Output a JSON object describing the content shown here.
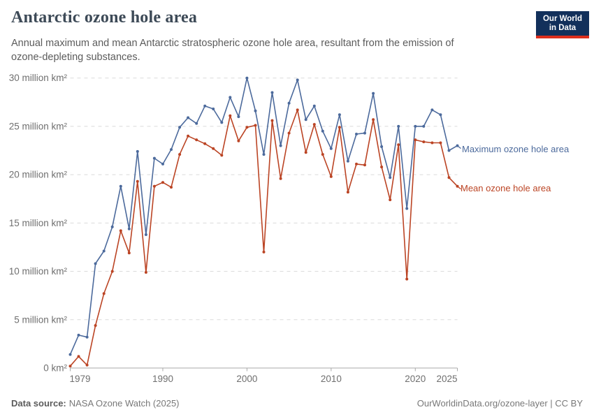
{
  "header": {
    "title": "Antarctic ozone hole area",
    "subtitle": "Annual maximum and mean Antarctic stratospheric ozone hole area, resultant from the emission of ozone-depleting substances.",
    "logo": {
      "line1": "Our World",
      "line2": "in Data",
      "bg_color": "#12305b",
      "accent_color": "#dc2e1c"
    }
  },
  "chart_data": {
    "type": "line",
    "title": "Antarctic ozone hole area",
    "unit": "million km²",
    "xlabel": "",
    "ylabel": "",
    "ylim": [
      0,
      30
    ],
    "grid": "horizontal-dashed",
    "legend_position": "end-of-line-labels-right",
    "x": [
      1979,
      1980,
      1981,
      1982,
      1983,
      1984,
      1985,
      1986,
      1987,
      1988,
      1989,
      1990,
      1991,
      1992,
      1993,
      1994,
      1995,
      1996,
      1997,
      1998,
      1999,
      2000,
      2001,
      2002,
      2003,
      2004,
      2005,
      2006,
      2007,
      2008,
      2009,
      2010,
      2011,
      2012,
      2013,
      2014,
      2015,
      2016,
      2017,
      2018,
      2019,
      2020,
      2021,
      2022,
      2023,
      2024,
      2025
    ],
    "x_ticks": [
      1979,
      1990,
      2000,
      2010,
      2020,
      2025
    ],
    "y_ticks": [
      {
        "value": 0,
        "label": "0 km²"
      },
      {
        "value": 5,
        "label": "5 million km²"
      },
      {
        "value": 10,
        "label": "10 million km²"
      },
      {
        "value": 15,
        "label": "15 million km²"
      },
      {
        "value": 20,
        "label": "20 million km²"
      },
      {
        "value": 25,
        "label": "25 million km²"
      },
      {
        "value": 30,
        "label": "30 million km²"
      }
    ],
    "series": [
      {
        "name": "Maximum ozone hole area",
        "color": "#4C6A9C",
        "values": [
          1.4,
          3.4,
          3.2,
          10.8,
          12.1,
          14.6,
          18.8,
          14.4,
          22.4,
          13.8,
          21.7,
          21.1,
          22.6,
          24.9,
          25.9,
          25.3,
          27.1,
          26.8,
          25.4,
          28.0,
          26.0,
          30.0,
          26.6,
          22.1,
          28.5,
          23.0,
          27.4,
          29.8,
          25.7,
          27.1,
          24.5,
          22.7,
          26.2,
          21.4,
          24.2,
          24.3,
          28.4,
          22.9,
          19.7,
          25.0,
          16.5,
          25.0,
          25.0,
          26.7,
          26.2,
          22.5,
          23.0
        ]
      },
      {
        "name": "Mean ozone hole area",
        "color": "#BB4424",
        "values": [
          0.2,
          1.2,
          0.3,
          4.4,
          7.7,
          10.0,
          14.2,
          11.9,
          19.3,
          9.9,
          18.8,
          19.2,
          18.7,
          22.1,
          24.0,
          23.6,
          23.2,
          22.7,
          22.0,
          26.1,
          23.5,
          24.9,
          25.1,
          12.0,
          25.6,
          19.6,
          24.3,
          26.7,
          22.3,
          25.2,
          22.1,
          19.8,
          24.9,
          18.2,
          21.1,
          21.0,
          25.7,
          20.8,
          17.4,
          23.1,
          9.2,
          23.6,
          23.4,
          23.3,
          23.3,
          19.7,
          18.8
        ]
      }
    ]
  },
  "footer": {
    "source_label": "Data source:",
    "source_value": "NASA Ozone Watch (2025)",
    "credit": "OurWorldinData.org/ozone-layer | CC BY"
  }
}
